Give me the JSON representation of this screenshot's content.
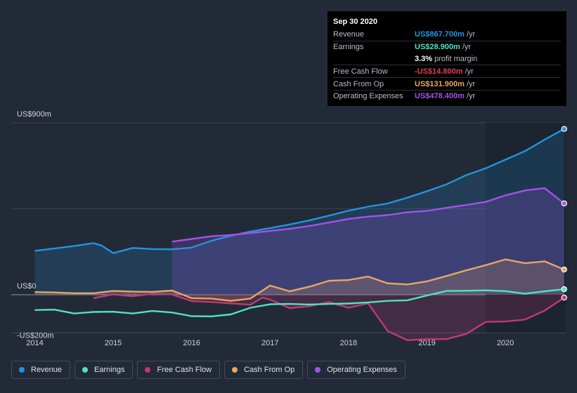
{
  "chart_data": {
    "type": "area",
    "x_ticks": [
      "2014",
      "2015",
      "2016",
      "2017",
      "2018",
      "2019",
      "2020"
    ],
    "y_ticks": [
      {
        "value": 900,
        "label": "US$900m"
      },
      {
        "value": 0,
        "label": "US$0"
      },
      {
        "value": -200,
        "label": "-US$200m"
      }
    ],
    "ylim": [
      -200,
      900
    ],
    "xlim": [
      2013.7,
      2020.77
    ],
    "forecast_start": 2019.75,
    "grid": true,
    "series": [
      {
        "name": "Revenue",
        "color": "#2394df",
        "fill": true,
        "x": [
          2014.0,
          2014.25,
          2014.5,
          2014.75,
          2014.85,
          2015.0,
          2015.25,
          2015.5,
          2015.75,
          2016.0,
          2016.25,
          2016.5,
          2016.75,
          2017.0,
          2017.25,
          2017.5,
          2017.75,
          2018.0,
          2018.25,
          2018.5,
          2018.75,
          2019.0,
          2019.25,
          2019.5,
          2019.75,
          2020.0,
          2020.25,
          2020.5,
          2020.75
        ],
        "y": [
          230,
          242,
          255,
          270,
          258,
          218,
          245,
          239,
          238,
          247,
          282,
          309,
          331,
          349,
          368,
          389,
          414,
          440,
          461,
          478,
          508,
          542,
          578,
          626,
          662,
          707,
          752,
          812,
          868
        ]
      },
      {
        "name": "Earnings",
        "color": "#4fe3c2",
        "fill": false,
        "x": [
          2014.0,
          2014.25,
          2014.5,
          2014.75,
          2015.0,
          2015.25,
          2015.5,
          2015.75,
          2016.0,
          2016.25,
          2016.5,
          2016.75,
          2017.0,
          2017.25,
          2017.5,
          2017.75,
          2018.0,
          2018.25,
          2018.5,
          2018.75,
          2019.0,
          2019.25,
          2019.5,
          2019.75,
          2020.0,
          2020.25,
          2020.5,
          2020.75
        ],
        "y": [
          -80,
          -78,
          -98,
          -90,
          -89,
          -98,
          -85,
          -93,
          -112,
          -113,
          -103,
          -68,
          -50,
          -48,
          -51,
          -48,
          -46,
          -40,
          -32,
          -29,
          -4,
          20,
          21,
          23,
          19,
          5,
          18,
          29
        ]
      },
      {
        "name": "Free Cash Flow",
        "color": "#c2377b",
        "fill": true,
        "x": [
          2014.75,
          2015.0,
          2015.25,
          2015.5,
          2015.75,
          2016.0,
          2016.25,
          2016.5,
          2016.75,
          2016.9,
          2017.0,
          2017.25,
          2017.5,
          2017.75,
          2018.0,
          2018.25,
          2018.5,
          2018.75,
          2019.0,
          2019.25,
          2019.5,
          2019.75,
          2020.0,
          2020.25,
          2020.5,
          2020.75
        ],
        "y": [
          -18,
          2,
          -8,
          5,
          1,
          -33,
          -38,
          -45,
          -52,
          -15,
          -25,
          -70,
          -60,
          -38,
          -68,
          -45,
          -190,
          -238,
          -232,
          -232,
          -205,
          -142,
          -140,
          -130,
          -83,
          -15
        ]
      },
      {
        "name": "Cash From Op",
        "color": "#e8a664",
        "fill": true,
        "x": [
          2014.0,
          2014.25,
          2014.5,
          2014.75,
          2015.0,
          2015.25,
          2015.5,
          2015.75,
          2016.0,
          2016.25,
          2016.5,
          2016.75,
          2017.0,
          2017.25,
          2017.5,
          2017.75,
          2018.0,
          2018.25,
          2018.5,
          2018.75,
          2019.0,
          2019.25,
          2019.5,
          2019.75,
          2020.0,
          2020.25,
          2020.5,
          2020.75
        ],
        "y": [
          14,
          12,
          8,
          8,
          20,
          16,
          15,
          22,
          -18,
          -20,
          -32,
          -20,
          48,
          18,
          42,
          73,
          77,
          95,
          60,
          54,
          70,
          98,
          128,
          155,
          185,
          165,
          175,
          132
        ]
      },
      {
        "name": "Operating Expenses",
        "color": "#a352e8",
        "fill": true,
        "x": [
          2015.75,
          2016.0,
          2016.25,
          2016.5,
          2016.75,
          2017.0,
          2017.25,
          2017.5,
          2017.75,
          2018.0,
          2018.25,
          2018.5,
          2018.75,
          2019.0,
          2019.25,
          2019.5,
          2019.75,
          2020.0,
          2020.25,
          2020.5,
          2020.75
        ],
        "y": [
          278,
          292,
          306,
          313,
          323,
          334,
          345,
          360,
          378,
          397,
          409,
          417,
          432,
          439,
          455,
          470,
          486,
          520,
          546,
          558,
          478
        ]
      }
    ]
  },
  "tooltip": {
    "date": "Sep 30 2020",
    "rows": [
      {
        "label": "Revenue",
        "value": "US$867.700m",
        "unit": "/yr",
        "color": "#2394df"
      },
      {
        "label": "Earnings",
        "value": "US$28.900m",
        "unit": "/yr",
        "color": "#4fe3c2"
      },
      {
        "label": "",
        "value": "3.3%",
        "unit": "profit margin",
        "color": "#ffffff"
      },
      {
        "label": "Free Cash Flow",
        "value": "-US$14.800m",
        "unit": "/yr",
        "color": "#e0414b"
      },
      {
        "label": "Cash From Op",
        "value": "US$131.900m",
        "unit": "/yr",
        "color": "#e8a664"
      },
      {
        "label": "Operating Expenses",
        "value": "US$478.400m",
        "unit": "/yr",
        "color": "#a352e8"
      }
    ]
  },
  "legend": [
    {
      "label": "Revenue",
      "color": "#2394df"
    },
    {
      "label": "Earnings",
      "color": "#4fe3c2"
    },
    {
      "label": "Free Cash Flow",
      "color": "#c2377b"
    },
    {
      "label": "Cash From Op",
      "color": "#e8a664"
    },
    {
      "label": "Operating Expenses",
      "color": "#a352e8"
    }
  ]
}
